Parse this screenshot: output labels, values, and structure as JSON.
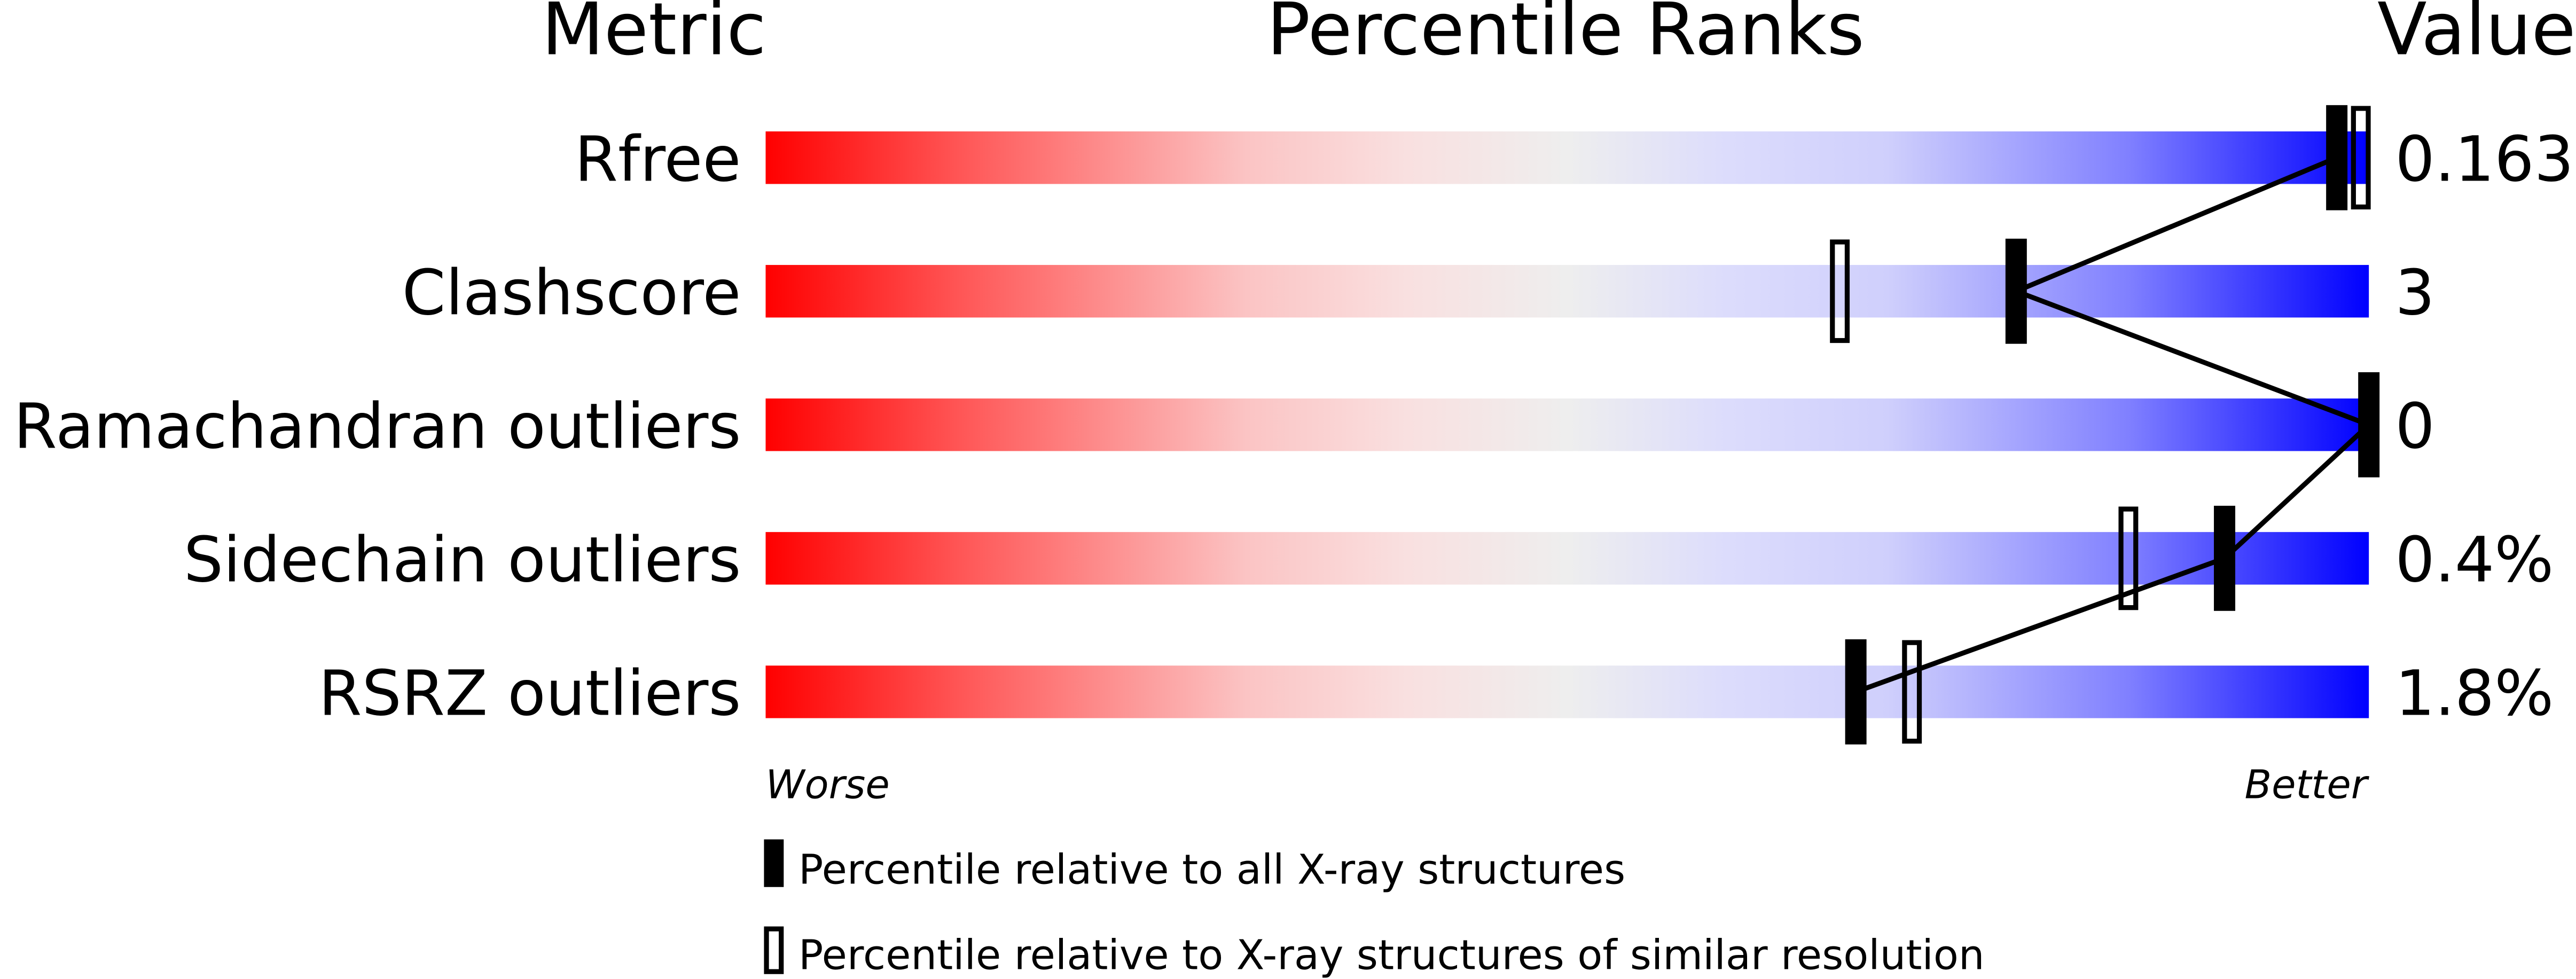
{
  "chart_data": {
    "type": "percentile-slider",
    "headers": {
      "metric": "Metric",
      "ranks": "Percentile Ranks",
      "value": "Value"
    },
    "xlim": [
      0,
      100
    ],
    "axis_labels": {
      "left": "Worse",
      "right": "Better"
    },
    "gradient_colors": {
      "worse": "#ff0000",
      "middle": "#eeeeee",
      "better": "#0000ff"
    },
    "metrics": [
      {
        "name": "Rfree",
        "value": "0.163",
        "percentile_all": 98,
        "percentile_similar": 99.5
      },
      {
        "name": "Clashscore",
        "value": "3",
        "percentile_all": 78,
        "percentile_similar": 67
      },
      {
        "name": "Ramachandran outliers",
        "value": "0",
        "percentile_all": 100,
        "percentile_similar": null
      },
      {
        "name": "Sidechain outliers",
        "value": "0.4%",
        "percentile_all": 91,
        "percentile_similar": 85
      },
      {
        "name": "RSRZ outliers",
        "value": "1.8%",
        "percentile_all": 68,
        "percentile_similar": 71.5
      }
    ],
    "legend": [
      {
        "marker": "filled",
        "label": "Percentile relative to all X-ray structures"
      },
      {
        "marker": "open",
        "label": "Percentile relative to X-ray structures of similar resolution"
      }
    ]
  }
}
